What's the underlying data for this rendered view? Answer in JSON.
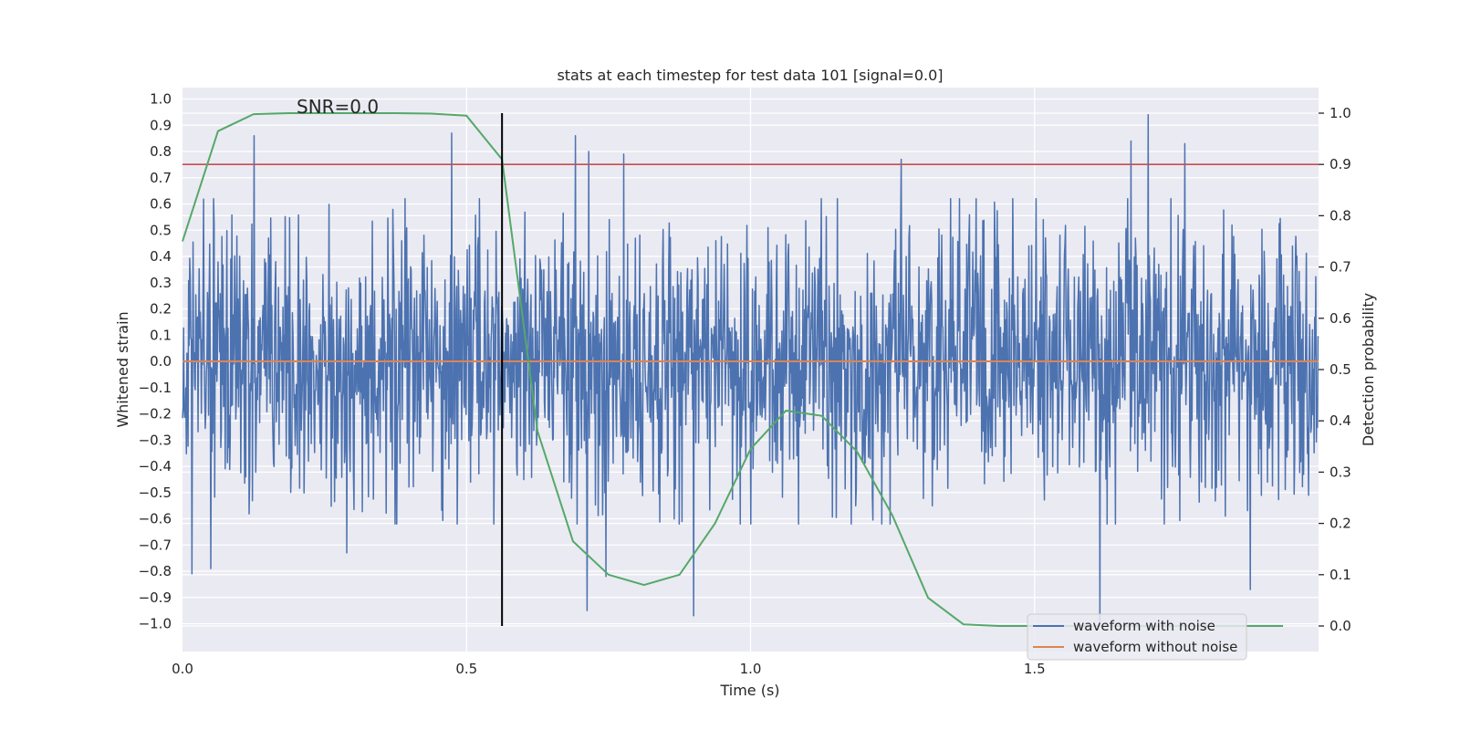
{
  "chart_data": {
    "type": "line",
    "title": "stats at each timestep for test data 101 [signal=0.0]",
    "xlabel": "Time (s)",
    "ylabel": "Whitened strain",
    "y2label": "Detection probability",
    "annotation": "SNR=0.0",
    "xlim": [
      0.0,
      2.0
    ],
    "ylim": [
      -1.1,
      1.05
    ],
    "y2lim": [
      -0.05,
      1.03
    ],
    "x_ticks": [
      0.0,
      0.5,
      1.0,
      1.5
    ],
    "x_tick_labels": [
      "0.0",
      "0.5",
      "1.0",
      "1.5"
    ],
    "y_ticks": [
      1.0,
      0.9,
      0.8,
      0.7,
      0.6,
      0.5,
      0.4,
      0.3,
      0.2,
      0.1,
      0.0,
      -0.1,
      -0.2,
      -0.3,
      -0.4,
      -0.5,
      -0.6,
      -0.7,
      -0.8,
      -0.9,
      -1.0
    ],
    "y_tick_labels": [
      "1.0",
      "0.9",
      "0.8",
      "0.7",
      "0.6",
      "0.5",
      "0.4",
      "0.3",
      "0.2",
      "0.1",
      "0.0",
      "−0.1",
      "−0.2",
      "−0.3",
      "−0.4",
      "−0.5",
      "−0.6",
      "−0.7",
      "−0.8",
      "−0.9",
      "−1.0"
    ],
    "y2_ticks": [
      1.0,
      0.9,
      0.8,
      0.7,
      0.6,
      0.5,
      0.4,
      0.3,
      0.2,
      0.1,
      0.0
    ],
    "y2_tick_labels": [
      "1.0",
      "0.9",
      "0.8",
      "0.7",
      "0.6",
      "0.5",
      "0.4",
      "0.3",
      "0.2",
      "0.1",
      "0.0"
    ],
    "legend": [
      {
        "label": "waveform with noise",
        "color": "#4c72b0"
      },
      {
        "label": "waveform without noise",
        "color": "#dd8452"
      }
    ],
    "legend_position": "lower-right",
    "grid": true,
    "noise_series": {
      "name": "waveform with noise",
      "color": "#4c72b0",
      "x_start": 0.0,
      "x_end": 2.0,
      "std": 0.26,
      "n_points": 2048,
      "random_seed": 101,
      "peaks": [
        {
          "x": 0.126,
          "y": 0.86
        },
        {
          "x": 0.474,
          "y": 0.87
        },
        {
          "x": 0.692,
          "y": 0.86
        },
        {
          "x": 0.715,
          "y": 0.8
        },
        {
          "x": 0.777,
          "y": 0.79
        },
        {
          "x": 1.265,
          "y": 0.77
        },
        {
          "x": 1.67,
          "y": 0.84
        },
        {
          "x": 1.7,
          "y": 0.94
        },
        {
          "x": 1.765,
          "y": 0.83
        },
        {
          "x": 0.017,
          "y": -0.81
        },
        {
          "x": 0.05,
          "y": -0.79
        },
        {
          "x": 0.289,
          "y": -0.73
        },
        {
          "x": 0.712,
          "y": -0.95
        },
        {
          "x": 0.745,
          "y": -0.82
        },
        {
          "x": 0.9,
          "y": -0.97
        },
        {
          "x": 1.615,
          "y": -1.0
        },
        {
          "x": 1.88,
          "y": -0.87
        }
      ]
    },
    "clean_series": {
      "name": "waveform without noise",
      "color": "#dd8452",
      "x": [
        0.0,
        2.0
      ],
      "y": [
        0.0,
        0.0
      ]
    },
    "probability_series": {
      "name": "Detection probability",
      "color": "#55a868",
      "axis": "y2",
      "x": [
        0.0,
        0.0625,
        0.125,
        0.1875,
        0.25,
        0.3125,
        0.375,
        0.4375,
        0.5,
        0.5625,
        0.625,
        0.6875,
        0.75,
        0.8125,
        0.875,
        0.9375,
        1.0,
        1.0625,
        1.125,
        1.1875,
        1.25,
        1.3125,
        1.375,
        1.4375,
        1.5,
        1.5625,
        1.625,
        1.6875,
        1.75,
        1.8125,
        1.875,
        1.9375
      ],
      "y": [
        0.75,
        0.965,
        0.998,
        1.0,
        1.0,
        1.0,
        1.0,
        0.999,
        0.995,
        0.91,
        0.38,
        0.165,
        0.1,
        0.08,
        0.1,
        0.2,
        0.345,
        0.42,
        0.41,
        0.34,
        0.215,
        0.055,
        0.003,
        0.0,
        0.0,
        0.0,
        0.0,
        0.0,
        0.0,
        0.0,
        0.0,
        0.0
      ]
    },
    "threshold": {
      "y2": 0.9,
      "color": "#c44e52"
    },
    "marker_time": {
      "x": 0.5625,
      "y2_from": 0.0,
      "y2_to": 1.0,
      "color": "#000000"
    }
  }
}
